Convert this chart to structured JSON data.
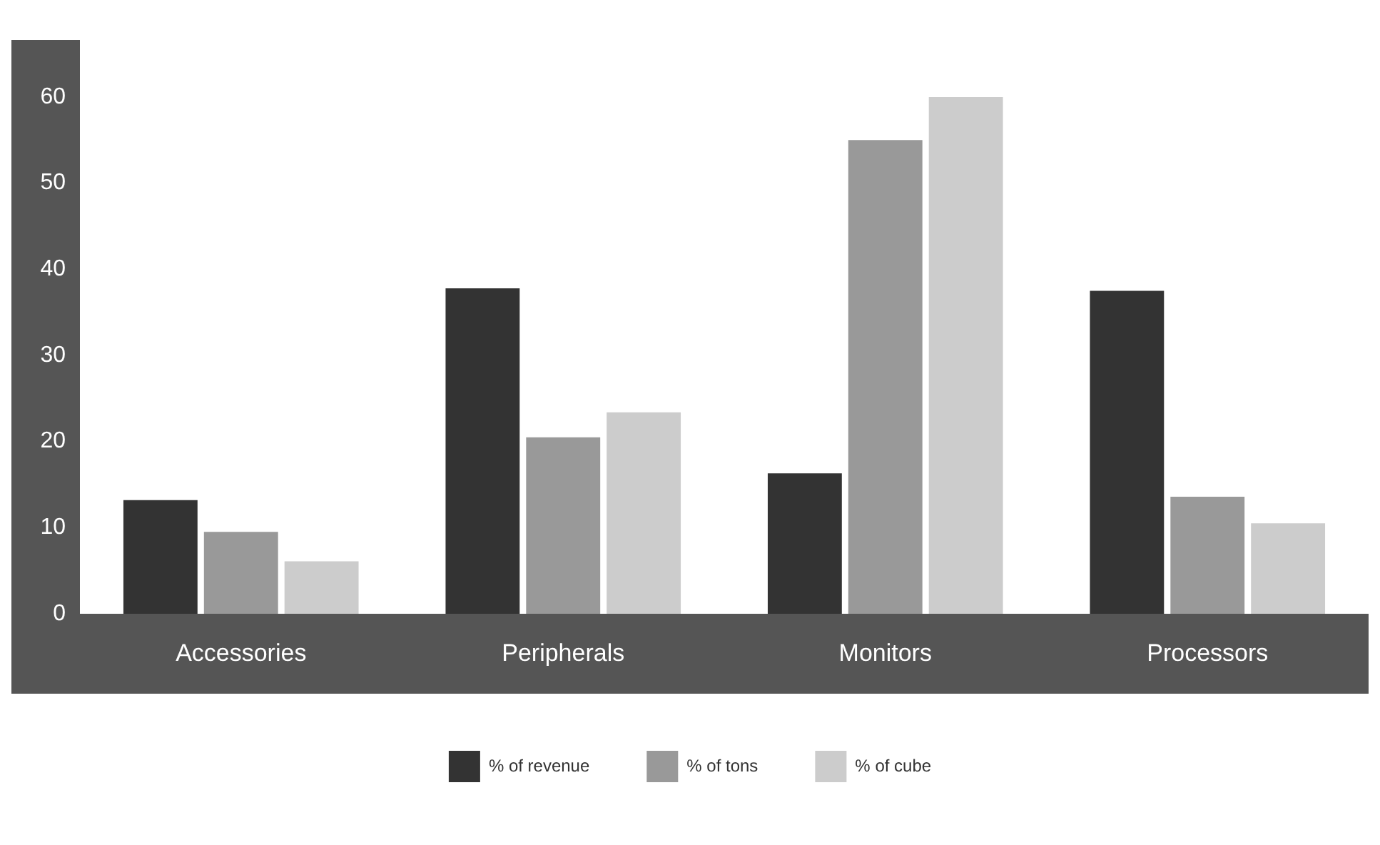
{
  "chart_data": {
    "type": "bar",
    "categories": [
      "Accessories",
      "Peripherals",
      "Monitors",
      "Processors"
    ],
    "series": [
      {
        "name": "% of revenue",
        "color": "#333333",
        "values": [
          13.2,
          37.8,
          16.3,
          37.5
        ]
      },
      {
        "name": "% of tons",
        "color": "#999999",
        "values": [
          9.5,
          20.5,
          55,
          13.6
        ]
      },
      {
        "name": "% of cube",
        "color": "#cccccc",
        "values": [
          6.1,
          23.4,
          60,
          10.5
        ]
      }
    ],
    "ylim": [
      0,
      60
    ],
    "yticks": [
      0,
      10,
      20,
      30,
      40,
      50,
      60
    ],
    "grid": false,
    "legend": "bottom"
  }
}
